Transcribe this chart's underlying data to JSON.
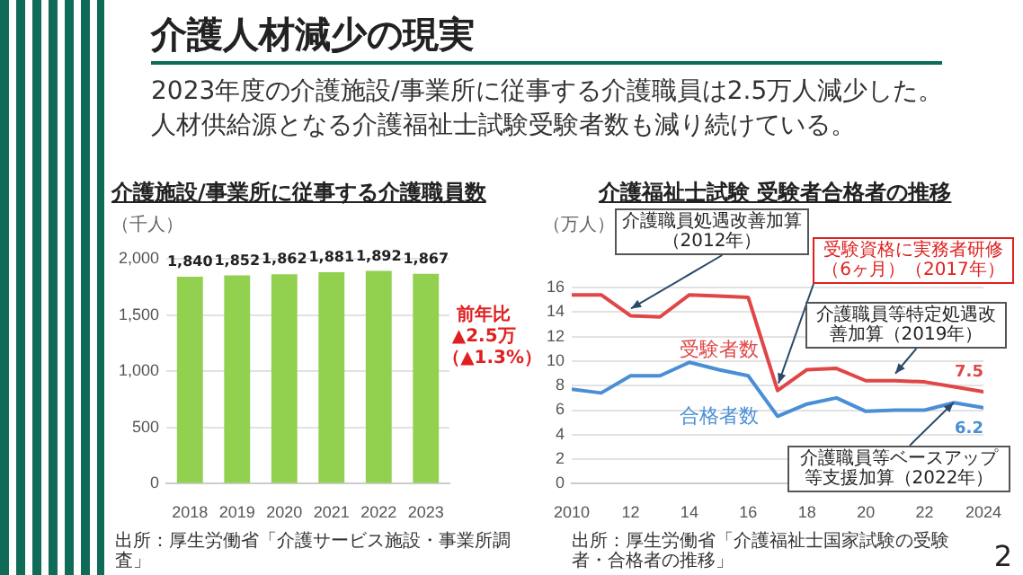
{
  "chart_data": [
    {
      "type": "bar",
      "title": "介護施設/事業所に従事する介護職員数",
      "ylabel": "（千人）",
      "categories": [
        "2018",
        "2019",
        "2020",
        "2021",
        "2022",
        "2023"
      ],
      "values": [
        1840,
        1852,
        1862,
        1881,
        1892,
        1867
      ],
      "value_labels": [
        "1,840",
        "1,852",
        "1,862",
        "1,881",
        "1,892",
        "1,867"
      ],
      "color": "#92d050",
      "ylim": [
        0,
        2000
      ],
      "yticks": [
        0,
        500,
        {
          "value": 1000,
          "label": "1,000"
        },
        {
          "value": 1500,
          "label": "1,500"
        },
        {
          "value": 2000,
          "label": "2,000"
        }
      ],
      "grid": "y",
      "legend": false,
      "annotations": [
        "介護人材減少の現実",
        "2023年度の介護施設/事業所に従事する介護職員は2.5万人減少した。",
        "人材供給源となる介護福祉士試験受験者数も減り続けている。",
        "前年比▲2.5万（▲1.3%）",
        "出所：厚生労働省「介護サービス施設・事業所調査」"
      ]
    },
    {
      "type": "line",
      "title": "介護福祉士試験 受験者合格者の推移",
      "ylabel": "（万人）",
      "x": [
        2010,
        2011,
        2012,
        2013,
        2014,
        2015,
        2016,
        2017,
        2018,
        2019,
        2020,
        2021,
        2022,
        2023,
        2024
      ],
      "series": [
        {
          "name": "受験者数",
          "color": "#e04646",
          "values": [
            15.4,
            15.4,
            13.7,
            13.6,
            15.4,
            15.3,
            15.2,
            7.6,
            9.3,
            9.4,
            8.4,
            8.4,
            8.3,
            7.9,
            7.5
          ],
          "value_labels": [
            null,
            null,
            null,
            null,
            null,
            null,
            null,
            null,
            null,
            null,
            null,
            null,
            null,
            null,
            "7.5"
          ]
        },
        {
          "name": "合格者数",
          "color": "#4a8fd6",
          "values": [
            7.7,
            7.4,
            8.8,
            8.8,
            9.9,
            9.3,
            8.8,
            5.5,
            6.5,
            7.0,
            5.9,
            6.0,
            6.0,
            6.6,
            6.2
          ],
          "value_labels": [
            null,
            null,
            null,
            null,
            null,
            null,
            null,
            null,
            null,
            null,
            null,
            null,
            null,
            null,
            "6.2"
          ]
        }
      ],
      "xlim": [
        2010,
        2024
      ],
      "xticks": [
        2010,
        {
          "value": 2012,
          "label": "12"
        },
        {
          "value": 2014,
          "label": "14"
        },
        {
          "value": 2016,
          "label": "16"
        },
        {
          "value": 2018,
          "label": "18"
        },
        {
          "value": 2020,
          "label": "20"
        },
        {
          "value": 2022,
          "label": "22"
        },
        2024
      ],
      "ylim": [
        0,
        16
      ],
      "yticks": [
        0,
        2,
        4,
        6,
        8,
        10,
        12,
        14,
        16
      ],
      "grid": "y",
      "legend": false,
      "marker": "none",
      "line_style": "solid",
      "annotations": [
        {
          "text": "介護職員処遇改善加算（2012年）",
          "x": 2012,
          "y": 13.7
        },
        {
          "text": "受験資格に実務者研修（6ヶ月）（2017年）",
          "x": 2017,
          "y": 7.6
        },
        {
          "text": "介護職員等特定処遇改善加算（2019年）",
          "x": 2021,
          "y": 8.4
        },
        {
          "text": "介護職員等ベースアップ等支援加算（2022年）",
          "x": 2023,
          "y": 7.2
        },
        "出所：厚生労働省「介護福祉士国家試験の受験者・合格者の推移」",
        "2"
      ]
    }
  ]
}
